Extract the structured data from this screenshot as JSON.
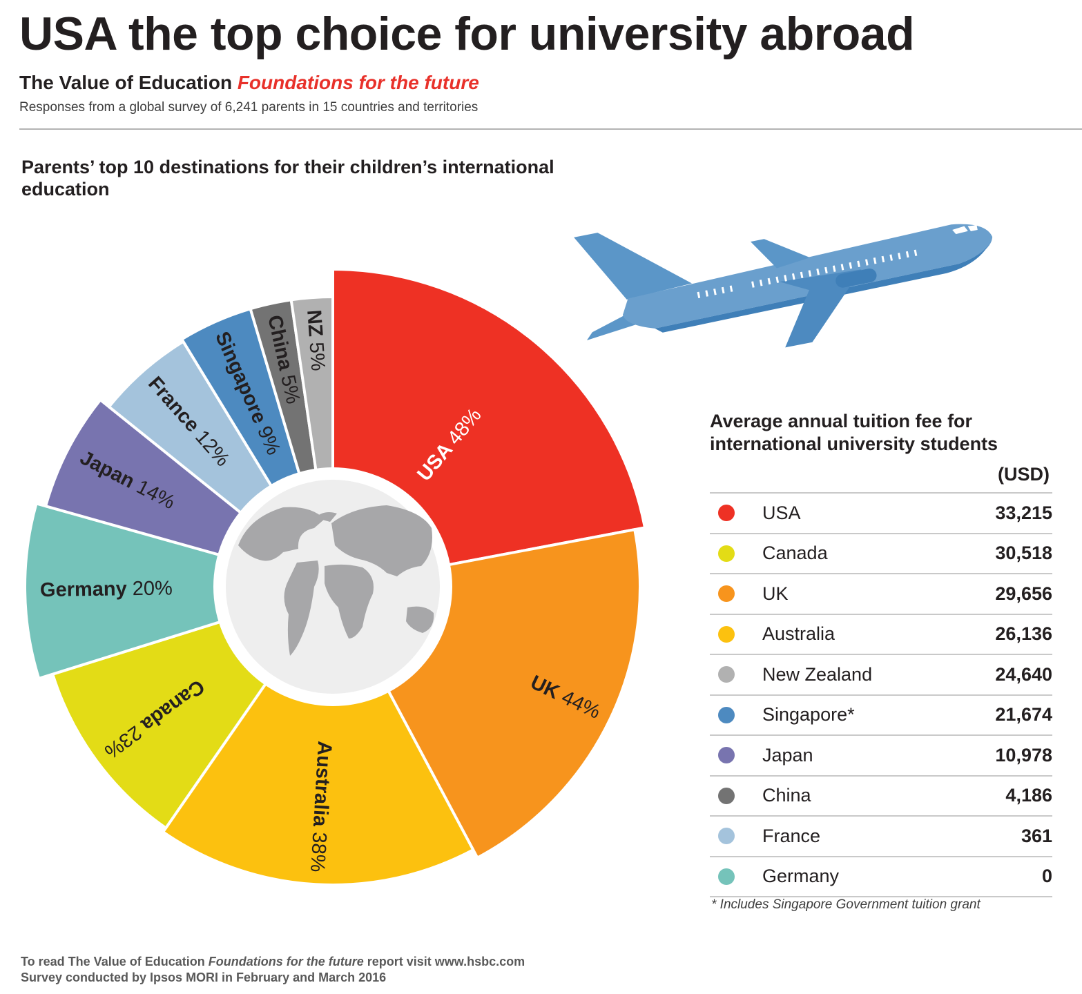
{
  "header": {
    "title": "USA the top choice for university abroad",
    "subtitle_bold": "The Value of Education",
    "subtitle_accent": "Foundations for the future",
    "tagline": "Responses from a global survey of 6,241 parents in 15 countries and territories"
  },
  "chart_data": [
    {
      "type": "pie",
      "title": "Parents’ top 10 destinations for their children’s international education",
      "unit": "%",
      "categories": [
        "USA",
        "UK",
        "Australia",
        "Canada",
        "Germany",
        "Japan",
        "France",
        "Singapore",
        "China",
        "NZ"
      ],
      "values": [
        48,
        44,
        38,
        23,
        20,
        14,
        12,
        9,
        5,
        5
      ],
      "value_labels": [
        "48%",
        "44%",
        "38%",
        "23%",
        "20%",
        "14%",
        "12%",
        "9%",
        "5%",
        "5%"
      ],
      "colors": [
        "#ee3124",
        "#f7941d",
        "#fcc10f",
        "#e3dc16",
        "#75c3ba",
        "#7874af",
        "#a4c3dc",
        "#4d8ac0",
        "#737373",
        "#b1b1b1"
      ],
      "donut_center": "world-globe-icon"
    },
    {
      "type": "table",
      "title": "Average annual tuition fee for international university students",
      "unit": "(USD)",
      "rows": [
        {
          "country": "USA",
          "fee": "33,215",
          "color": "#ee3124"
        },
        {
          "country": "Canada",
          "fee": "30,518",
          "color": "#e3dc16"
        },
        {
          "country": "UK",
          "fee": "29,656",
          "color": "#f7941d"
        },
        {
          "country": "Australia",
          "fee": "26,136",
          "color": "#fcc10f"
        },
        {
          "country": "New Zealand",
          "fee": "24,640",
          "color": "#b1b1b1"
        },
        {
          "country": "Singapore*",
          "fee": "21,674",
          "color": "#4d8ac0"
        },
        {
          "country": "Japan",
          "fee": "10,978",
          "color": "#7874af"
        },
        {
          "country": "China",
          "fee": "4,186",
          "color": "#737373"
        },
        {
          "country": "France",
          "fee": "361",
          "color": "#a4c3dc"
        },
        {
          "country": "Germany",
          "fee": "0",
          "color": "#75c3ba"
        }
      ],
      "footnote": "* Includes Singapore Government tuition grant"
    }
  ],
  "illustration": {
    "icon": "airplane-icon",
    "color": "#5b96c8"
  },
  "footer": {
    "line1_prefix": "To read The Value of Education",
    "line1_italic": "Foundations for the future",
    "line1_suffix": "report visit www.hsbc.com",
    "line2": "Survey conducted by Ipsos MORI in February and March 2016"
  }
}
